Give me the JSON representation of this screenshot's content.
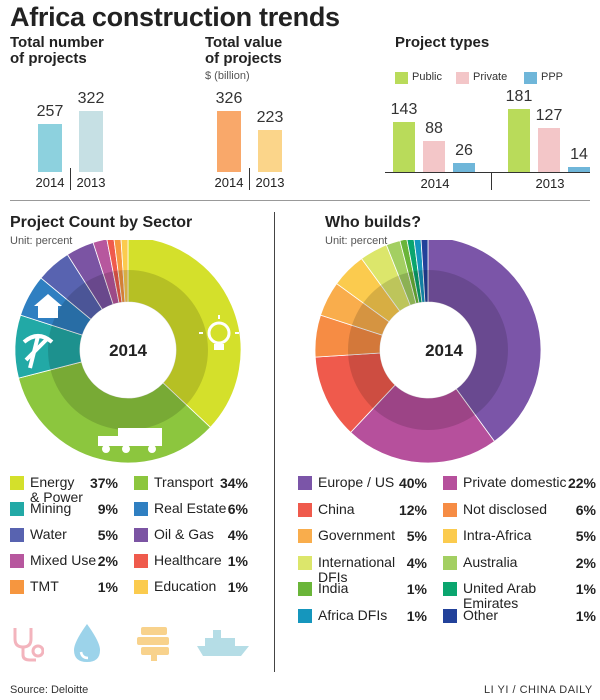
{
  "title": "Africa construction trends",
  "colors": {
    "num2014": "#8dd1de",
    "num2013": "#c6e0e4",
    "val2014": "#f9a86a",
    "val2013": "#fbd58a",
    "public": "#b9db5a",
    "private": "#f3c6c8",
    "ppp": "#6fb6d9"
  },
  "total_number": {
    "title_line1": "Total number",
    "title_line2": "of projects",
    "labels": [
      "2014",
      "2013"
    ],
    "values": [
      257,
      322
    ]
  },
  "total_value": {
    "title_line1": "Total value",
    "title_line2": "of projects",
    "unit": "$ (billion)",
    "labels": [
      "2014",
      "2013"
    ],
    "values": [
      326,
      223
    ]
  },
  "project_types": {
    "title": "Project types",
    "legend": [
      "Public",
      "Private",
      "PPP"
    ],
    "groups": [
      {
        "year": "2014",
        "values": [
          143,
          88,
          26
        ]
      },
      {
        "year": "2013",
        "values": [
          181,
          127,
          14
        ]
      }
    ]
  },
  "sector": {
    "title": "Project Count by Sector",
    "unit": "Unit: percent",
    "center": "2014",
    "items": [
      {
        "label": "Energy\n& Power",
        "pct": "37%",
        "value": 37,
        "color": "#d4e02b"
      },
      {
        "label": "Transport",
        "pct": "34%",
        "value": 34,
        "color": "#8cc63e"
      },
      {
        "label": "Mining",
        "pct": "9%",
        "value": 9,
        "color": "#22a9a6"
      },
      {
        "label": "Real Estate",
        "pct": "6%",
        "value": 6,
        "color": "#2f7fc1"
      },
      {
        "label": "Water",
        "pct": "5%",
        "value": 5,
        "color": "#5863b0"
      },
      {
        "label": "Oil & Gas",
        "pct": "4%",
        "value": 4,
        "color": "#7b54a3"
      },
      {
        "label": "Mixed Use",
        "pct": "2%",
        "value": 2,
        "color": "#b7579e"
      },
      {
        "label": "Healthcare",
        "pct": "1%",
        "value": 1,
        "color": "#ef5a4c"
      },
      {
        "label": "TMT",
        "pct": "1%",
        "value": 1,
        "color": "#f6963f"
      },
      {
        "label": "Education",
        "pct": "1%",
        "value": 1,
        "color": "#fbcb4e"
      }
    ]
  },
  "builders": {
    "title": "Who builds?",
    "unit": "Unit: percent",
    "center": "2014",
    "items": [
      {
        "label": "Europe / US",
        "pct": "40%",
        "value": 40,
        "color": "#7b55a8"
      },
      {
        "label": "Private domestic",
        "pct": "22%",
        "value": 22,
        "color": "#b6509c"
      },
      {
        "label": "China",
        "pct": "12%",
        "value": 12,
        "color": "#ef5a4c"
      },
      {
        "label": "Not disclosed",
        "pct": "6%",
        "value": 6,
        "color": "#f68c44"
      },
      {
        "label": "Government",
        "pct": "5%",
        "value": 5,
        "color": "#f9ad4c"
      },
      {
        "label": "Intra-Africa",
        "pct": "5%",
        "value": 5,
        "color": "#fbcb4e"
      },
      {
        "label": "International\nDFIs",
        "pct": "4%",
        "value": 4,
        "color": "#dce66b"
      },
      {
        "label": "Australia",
        "pct": "2%",
        "value": 2,
        "color": "#a3cf62"
      },
      {
        "label": "India",
        "pct": "1%",
        "value": 1,
        "color": "#6ab539"
      },
      {
        "label": "United Arab\nEmirates",
        "pct": "1%",
        "value": 1,
        "color": "#0aa56e"
      },
      {
        "label": "Africa DFIs",
        "pct": "1%",
        "value": 1,
        "color": "#1596bd"
      },
      {
        "label": "Other",
        "pct": "1%",
        "value": 1,
        "color": "#22419a"
      }
    ]
  },
  "source": "Source: Deloitte",
  "credit": "LI YI / CHINA DAILY",
  "icons": [
    "power-bulb-icon",
    "train-icon",
    "pickaxe-icon",
    "house-icon",
    "stethoscope-icon",
    "water-drop-icon",
    "books-icon",
    "ship-icon"
  ],
  "chart_data": [
    {
      "type": "bar",
      "title": "Total number of projects",
      "categories": [
        "2014",
        "2013"
      ],
      "values": [
        257,
        322
      ]
    },
    {
      "type": "bar",
      "title": "Total value of projects",
      "ylabel": "$ (billion)",
      "categories": [
        "2014",
        "2013"
      ],
      "values": [
        326,
        223
      ]
    },
    {
      "type": "bar",
      "title": "Project types",
      "categories": [
        "2014",
        "2013"
      ],
      "series": [
        {
          "name": "Public",
          "values": [
            143,
            181
          ]
        },
        {
          "name": "Private",
          "values": [
            88,
            127
          ]
        },
        {
          "name": "PPP",
          "values": [
            26,
            14
          ]
        }
      ]
    },
    {
      "type": "pie",
      "title": "Project Count by Sector",
      "labels": [
        "Energy & Power",
        "Transport",
        "Mining",
        "Real Estate",
        "Water",
        "Oil & Gas",
        "Mixed Use",
        "Healthcare",
        "TMT",
        "Education"
      ],
      "values": [
        37,
        34,
        9,
        6,
        5,
        4,
        2,
        1,
        1,
        1
      ]
    },
    {
      "type": "pie",
      "title": "Who builds?",
      "labels": [
        "Europe / US",
        "Private domestic",
        "China",
        "Not disclosed",
        "Government",
        "Intra-Africa",
        "International DFIs",
        "Australia",
        "India",
        "United Arab Emirates",
        "Africa DFIs",
        "Other"
      ],
      "values": [
        40,
        22,
        12,
        6,
        5,
        5,
        4,
        2,
        1,
        1,
        1,
        1
      ]
    }
  ]
}
